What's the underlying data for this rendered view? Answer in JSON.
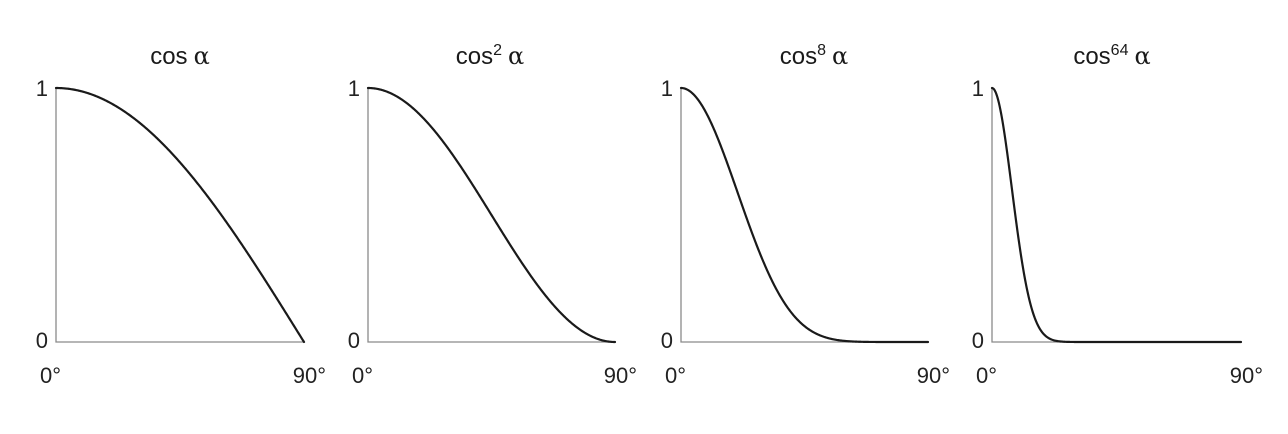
{
  "chart_data": [
    {
      "type": "line",
      "title": "cos α",
      "title_base": "cos",
      "title_exp": "",
      "title_symbol": "α",
      "exponent": 1,
      "xlim": [
        0,
        90
      ],
      "ylim": [
        0,
        1
      ],
      "x_ticks": [
        "0°",
        "90°"
      ],
      "y_ticks": [
        "0",
        "1"
      ],
      "x": [
        0,
        15,
        30,
        45,
        60,
        75,
        90
      ],
      "y": [
        1.0,
        0.966,
        0.866,
        0.707,
        0.5,
        0.259,
        0.0
      ],
      "grid": false
    },
    {
      "type": "line",
      "title": "cos² α",
      "title_base": "cos",
      "title_exp": "2",
      "title_symbol": "α",
      "exponent": 2,
      "xlim": [
        0,
        90
      ],
      "ylim": [
        0,
        1
      ],
      "x_ticks": [
        "0°",
        "90°"
      ],
      "y_ticks": [
        "0",
        "1"
      ],
      "x": [
        0,
        15,
        30,
        45,
        60,
        75,
        90
      ],
      "y": [
        1.0,
        0.933,
        0.75,
        0.5,
        0.25,
        0.067,
        0.0
      ],
      "grid": false
    },
    {
      "type": "line",
      "title": "cos⁸ α",
      "title_base": "cos",
      "title_exp": "8",
      "title_symbol": "α",
      "exponent": 8,
      "xlim": [
        0,
        90
      ],
      "ylim": [
        0,
        1
      ],
      "x_ticks": [
        "0°",
        "90°"
      ],
      "y_ticks": [
        "0",
        "1"
      ],
      "x": [
        0,
        15,
        30,
        45,
        60,
        75,
        90
      ],
      "y": [
        1.0,
        0.758,
        0.316,
        0.063,
        0.004,
        0.0,
        0.0
      ],
      "grid": false
    },
    {
      "type": "line",
      "title": "cos⁶⁴ α",
      "title_base": "cos",
      "title_exp": "64",
      "title_symbol": "α",
      "exponent": 64,
      "xlim": [
        0,
        90
      ],
      "ylim": [
        0,
        1
      ],
      "x_ticks": [
        "0°",
        "90°"
      ],
      "y_ticks": [
        "0",
        "1"
      ],
      "x": [
        0,
        5,
        10,
        15,
        20,
        30,
        45,
        90
      ],
      "y": [
        1.0,
        0.784,
        0.378,
        0.109,
        0.019,
        0.0,
        0.0,
        0.0
      ],
      "grid": false
    }
  ],
  "colors": {
    "curve": "#1a1a1a",
    "axis": "#8a8a8a",
    "text": "#222222",
    "background": "#ffffff"
  }
}
